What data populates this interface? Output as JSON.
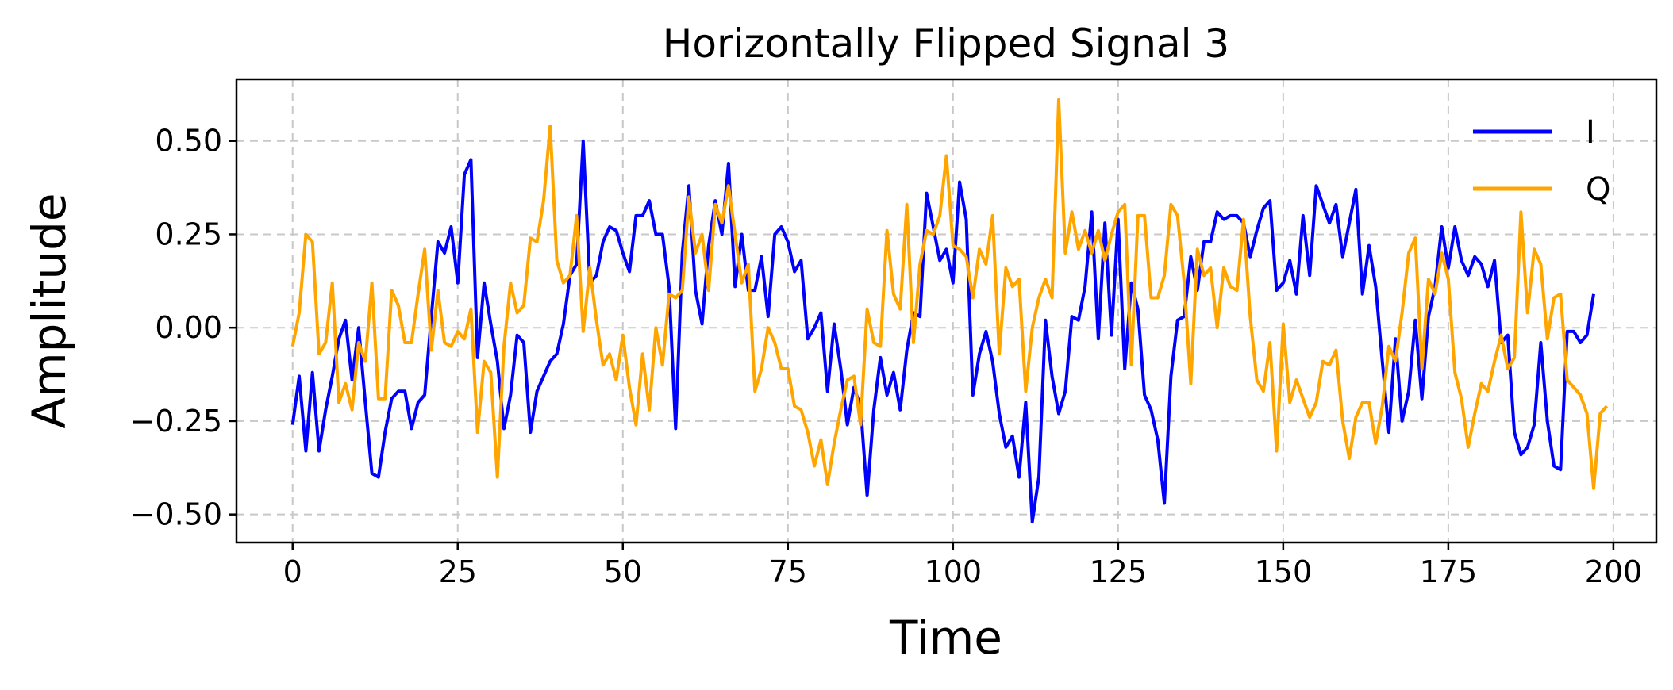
{
  "chart_data": {
    "type": "line",
    "title": "Horizontally Flipped Signal 3",
    "xlabel": "Time",
    "ylabel": "Amplitude",
    "xlim": [
      -8.5,
      206.5
    ],
    "ylim": [
      -0.575,
      0.665
    ],
    "xticks": [
      0,
      25,
      50,
      75,
      100,
      125,
      150,
      175,
      200
    ],
    "xtick_labels": [
      "0",
      "25",
      "50",
      "75",
      "100",
      "125",
      "150",
      "175",
      "200"
    ],
    "yticks": [
      -0.5,
      -0.25,
      0.0,
      0.25,
      0.5
    ],
    "ytick_labels": [
      "−0.50",
      "−0.25",
      "0.00",
      "0.25",
      "0.50"
    ],
    "grid": true,
    "legend_position": "top-right",
    "series": [
      {
        "name": "I",
        "color": "#0000ff",
        "values": [
          -0.26,
          -0.13,
          -0.33,
          -0.12,
          -0.33,
          -0.22,
          -0.13,
          -0.03,
          0.02,
          -0.14,
          0.0,
          -0.2,
          -0.39,
          -0.4,
          -0.28,
          -0.19,
          -0.17,
          -0.17,
          -0.27,
          -0.2,
          -0.18,
          0.03,
          0.23,
          0.2,
          0.27,
          0.12,
          0.41,
          0.45,
          -0.08,
          0.12,
          0.01,
          -0.09,
          -0.27,
          -0.18,
          -0.02,
          -0.04,
          -0.28,
          -0.17,
          -0.13,
          -0.09,
          -0.07,
          0.01,
          0.14,
          0.17,
          0.5,
          0.12,
          0.14,
          0.23,
          0.27,
          0.26,
          0.2,
          0.15,
          0.3,
          0.3,
          0.34,
          0.25,
          0.25,
          0.11,
          -0.27,
          0.2,
          0.38,
          0.1,
          0.01,
          0.22,
          0.34,
          0.25,
          0.44,
          0.11,
          0.25,
          0.1,
          0.1,
          0.19,
          0.03,
          0.25,
          0.27,
          0.23,
          0.15,
          0.18,
          -0.03,
          0.0,
          0.04,
          -0.17,
          0.01,
          -0.11,
          -0.26,
          -0.16,
          -0.21,
          -0.45,
          -0.22,
          -0.08,
          -0.18,
          -0.12,
          -0.22,
          -0.06,
          0.04,
          0.03,
          0.36,
          0.27,
          0.18,
          0.21,
          0.12,
          0.39,
          0.29,
          -0.18,
          -0.07,
          -0.01,
          -0.09,
          -0.23,
          -0.32,
          -0.29,
          -0.4,
          -0.2,
          -0.52,
          -0.4,
          0.02,
          -0.13,
          -0.23,
          -0.17,
          0.03,
          0.02,
          0.11,
          0.31,
          -0.03,
          0.28,
          -0.02,
          0.29,
          -0.11,
          0.12,
          0.05,
          -0.18,
          -0.22,
          -0.3,
          -0.47,
          -0.13,
          0.02,
          0.03,
          0.19,
          0.1,
          0.23,
          0.23,
          0.31,
          0.29,
          0.3,
          0.3,
          0.28,
          0.19,
          0.26,
          0.32,
          0.34,
          0.1,
          0.12,
          0.18,
          0.09,
          0.3,
          0.14,
          0.38,
          0.33,
          0.28,
          0.33,
          0.19,
          0.28,
          0.37,
          0.09,
          0.22,
          0.11,
          -0.09,
          -0.28,
          -0.03,
          -0.25,
          -0.17,
          0.02,
          -0.19,
          0.03,
          0.11,
          0.27,
          0.16,
          0.27,
          0.18,
          0.14,
          0.19,
          0.17,
          0.11,
          0.18,
          -0.04,
          -0.02,
          -0.28,
          -0.34,
          -0.32,
          -0.26,
          -0.04,
          -0.25,
          -0.37,
          -0.38,
          -0.01,
          -0.01,
          -0.04,
          -0.02,
          0.09
        ]
      },
      {
        "name": "Q",
        "color": "#ffa500",
        "values": [
          -0.05,
          0.04,
          0.25,
          0.23,
          -0.07,
          -0.04,
          0.12,
          -0.2,
          -0.15,
          -0.22,
          -0.04,
          -0.09,
          0.12,
          -0.19,
          -0.19,
          0.1,
          0.06,
          -0.04,
          -0.04,
          0.09,
          0.21,
          -0.06,
          0.1,
          -0.04,
          -0.05,
          -0.01,
          -0.03,
          0.05,
          -0.28,
          -0.09,
          -0.12,
          -0.4,
          -0.05,
          0.12,
          0.04,
          0.06,
          0.24,
          0.23,
          0.34,
          0.54,
          0.18,
          0.12,
          0.14,
          0.3,
          -0.01,
          0.16,
          0.02,
          -0.1,
          -0.07,
          -0.14,
          -0.02,
          -0.16,
          -0.26,
          -0.07,
          -0.22,
          0.0,
          -0.1,
          0.09,
          0.08,
          0.1,
          0.35,
          0.2,
          0.25,
          0.1,
          0.33,
          0.28,
          0.38,
          0.25,
          0.12,
          0.17,
          -0.17,
          -0.11,
          0.0,
          -0.04,
          -0.11,
          -0.11,
          -0.21,
          -0.22,
          -0.28,
          -0.37,
          -0.3,
          -0.42,
          -0.31,
          -0.22,
          -0.14,
          -0.13,
          -0.26,
          0.05,
          -0.04,
          -0.05,
          0.26,
          0.09,
          0.05,
          0.33,
          -0.04,
          0.17,
          0.26,
          0.25,
          0.3,
          0.46,
          0.22,
          0.21,
          0.19,
          0.08,
          0.21,
          0.17,
          0.3,
          -0.07,
          0.16,
          0.11,
          0.13,
          -0.17,
          0.0,
          0.08,
          0.13,
          0.08,
          0.61,
          0.2,
          0.31,
          0.21,
          0.26,
          0.2,
          0.26,
          0.18,
          0.25,
          0.31,
          0.33,
          -0.1,
          0.3,
          0.3,
          0.08,
          0.08,
          0.14,
          0.33,
          0.3,
          0.12,
          -0.15,
          0.21,
          0.14,
          0.16,
          0.0,
          0.16,
          0.11,
          0.1,
          0.29,
          0.03,
          -0.14,
          -0.17,
          -0.04,
          -0.33,
          0.01,
          -0.2,
          -0.14,
          -0.19,
          -0.24,
          -0.2,
          -0.09,
          -0.1,
          -0.06,
          -0.25,
          -0.35,
          -0.24,
          -0.2,
          -0.2,
          -0.31,
          -0.21,
          -0.05,
          -0.09,
          0.04,
          0.2,
          0.24,
          -0.11,
          0.13,
          0.09,
          0.2,
          0.13,
          -0.12,
          -0.19,
          -0.32,
          -0.23,
          -0.15,
          -0.17,
          -0.09,
          -0.02,
          -0.11,
          -0.08,
          0.31,
          0.04,
          0.21,
          0.17,
          -0.03,
          0.08,
          0.09,
          -0.14,
          -0.16,
          -0.18,
          -0.23,
          -0.43,
          -0.23,
          -0.21
        ]
      }
    ]
  }
}
